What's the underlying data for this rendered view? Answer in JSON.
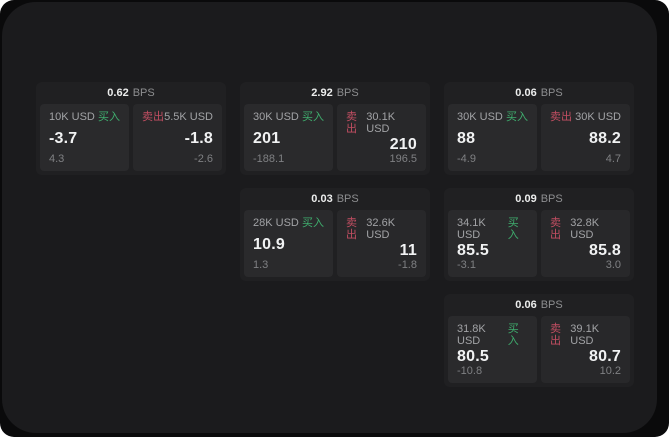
{
  "labels": {
    "bps": "BPS",
    "buy": "买入",
    "sell": "卖出"
  },
  "colors": {
    "page_bg": "#0a0a0b",
    "panel_bg": "#1b1b1d",
    "card_bg": "#202022",
    "tile_bg": "#29292b",
    "buy_accent": "#3fae6e",
    "sell_accent": "#c24e62",
    "price_text": "#f1f2f3",
    "muted_text": "#a2a3a6",
    "delta_text": "#7f8083"
  },
  "cards": [
    {
      "col": 1,
      "row": 1,
      "bps": "0.62",
      "buy": {
        "amount": "10K USD",
        "price": "-3.7",
        "delta": "4.3"
      },
      "sell": {
        "amount": "5.5K USD",
        "price": "-1.8",
        "delta": "-2.6"
      }
    },
    {
      "col": 2,
      "row": 1,
      "bps": "2.92",
      "buy": {
        "amount": "30K USD",
        "price": "201",
        "delta": "-188.1"
      },
      "sell": {
        "amount": "30.1K USD",
        "price": "210",
        "delta": "196.5"
      }
    },
    {
      "col": 3,
      "row": 1,
      "bps": "0.06",
      "buy": {
        "amount": "30K USD",
        "price": "88",
        "delta": "-4.9"
      },
      "sell": {
        "amount": "30K USD",
        "price": "88.2",
        "delta": "4.7"
      }
    },
    {
      "col": 2,
      "row": 2,
      "bps": "0.03",
      "buy": {
        "amount": "28K USD",
        "price": "10.9",
        "delta": "1.3"
      },
      "sell": {
        "amount": "32.6K USD",
        "price": "11",
        "delta": "-1.8"
      }
    },
    {
      "col": 3,
      "row": 2,
      "bps": "0.09",
      "buy": {
        "amount": "34.1K USD",
        "price": "85.5",
        "delta": "-3.1"
      },
      "sell": {
        "amount": "32.8K USD",
        "price": "85.8",
        "delta": "3.0"
      }
    },
    {
      "col": 3,
      "row": 3,
      "bps": "0.06",
      "buy": {
        "amount": "31.8K USD",
        "price": "80.5",
        "delta": "-10.8"
      },
      "sell": {
        "amount": "39.1K USD",
        "price": "80.7",
        "delta": "10.2"
      }
    }
  ]
}
